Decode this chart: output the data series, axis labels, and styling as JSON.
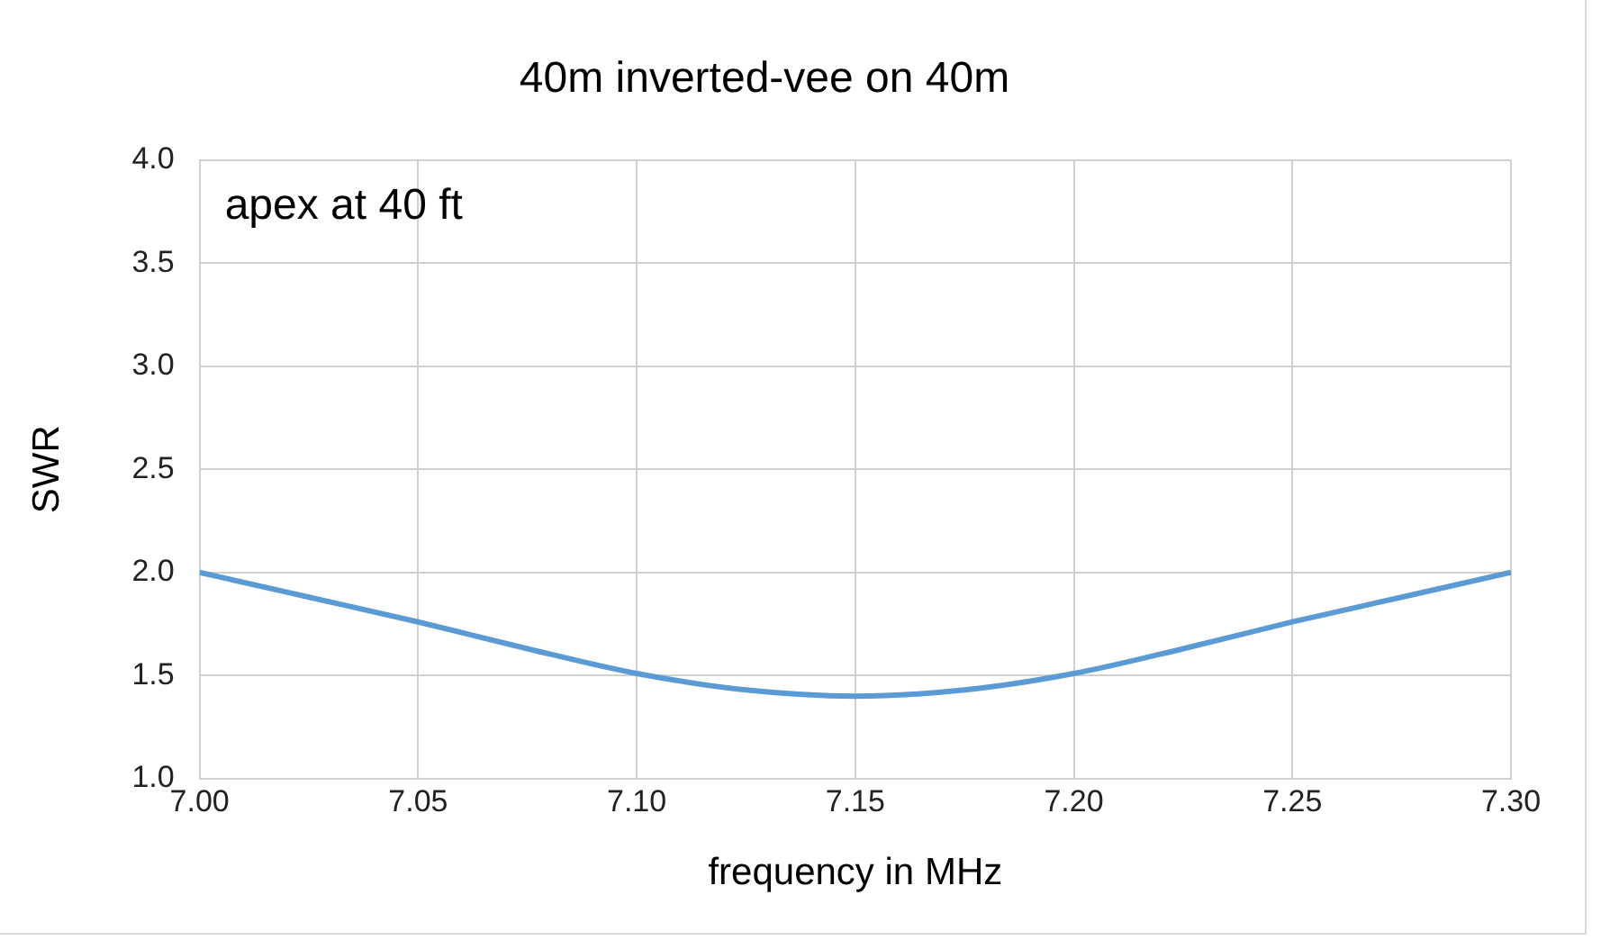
{
  "chart_data": {
    "type": "line",
    "title": "40m inverted-vee on 40m",
    "xlabel": "frequency in MHz",
    "ylabel": "SWR",
    "annotations": [
      "apex at 40 ft"
    ],
    "x": [
      7.0,
      7.025,
      7.05,
      7.075,
      7.1,
      7.125,
      7.15,
      7.175,
      7.2,
      7.225,
      7.25,
      7.275,
      7.3
    ],
    "series": [
      {
        "color": "#5b9bd5",
        "values": [
          2.0,
          1.88,
          1.76,
          1.63,
          1.51,
          1.43,
          1.4,
          1.43,
          1.51,
          1.63,
          1.76,
          1.88,
          2.0
        ]
      }
    ],
    "xlim": [
      7.0,
      7.3
    ],
    "xticks": [
      {
        "value": 7.0,
        "label": "7.00"
      },
      {
        "value": 7.05,
        "label": "7.05"
      },
      {
        "value": 7.1,
        "label": "7.10"
      },
      {
        "value": 7.15,
        "label": "7.15"
      },
      {
        "value": 7.2,
        "label": "7.20"
      },
      {
        "value": 7.25,
        "label": "7.25"
      },
      {
        "value": 7.3,
        "label": "7.30"
      }
    ],
    "ylim": [
      1.0,
      4.0
    ],
    "yticks": [
      {
        "value": 1.0,
        "label": "1.0"
      },
      {
        "value": 1.5,
        "label": "1.5"
      },
      {
        "value": 2.0,
        "label": "2.0"
      },
      {
        "value": 2.5,
        "label": "2.5"
      },
      {
        "value": 3.0,
        "label": "3.0"
      },
      {
        "value": 3.5,
        "label": "3.5"
      },
      {
        "value": 4.0,
        "label": "4.0"
      }
    ],
    "grid": true,
    "legend": false,
    "marker": "none",
    "line_style": "solid"
  }
}
